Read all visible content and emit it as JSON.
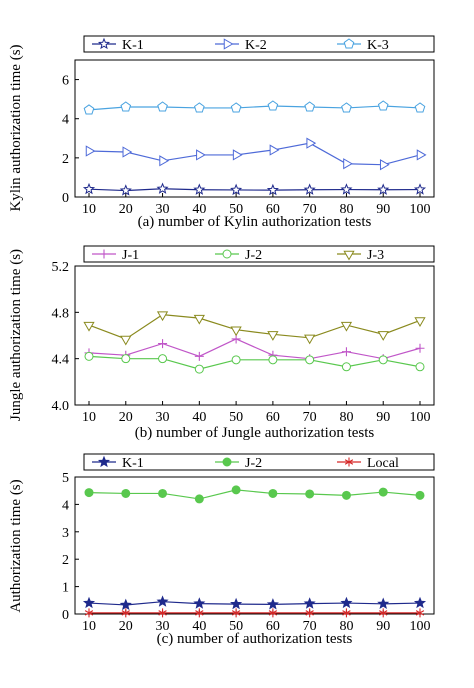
{
  "chart_data": [
    {
      "type": "line",
      "xlabel": "(a) number of Kylin authorization tests",
      "ylabel": "Kylin authorization time (s)",
      "x": [
        10,
        20,
        30,
        40,
        50,
        60,
        70,
        80,
        90,
        100
      ],
      "xticks": [
        "10",
        "20",
        "30",
        "40",
        "50",
        "60",
        "70",
        "80",
        "90",
        "100"
      ],
      "ylim": [
        0,
        7
      ],
      "yticks": [
        "0",
        "2",
        "4",
        "6"
      ],
      "ytick_values": [
        0,
        2,
        4,
        6
      ],
      "legend_position": "top",
      "grid": false,
      "series": [
        {
          "name": "K-1",
          "marker": "star",
          "color": "#1f2a8c",
          "values": [
            0.4,
            0.33,
            0.42,
            0.37,
            0.36,
            0.35,
            0.37,
            0.38,
            0.37,
            0.38
          ]
        },
        {
          "name": "K-2",
          "marker": "triangle-right",
          "color": "#4e6ad8",
          "values": [
            2.35,
            2.3,
            1.85,
            2.15,
            2.15,
            2.4,
            2.75,
            1.7,
            1.65,
            2.15
          ]
        },
        {
          "name": "K-3",
          "marker": "pentagon",
          "color": "#4aa3e0",
          "values": [
            4.45,
            4.6,
            4.6,
            4.55,
            4.55,
            4.65,
            4.6,
            4.55,
            4.65,
            4.55
          ]
        }
      ]
    },
    {
      "type": "line",
      "xlabel": "(b) number of Jungle authorization tests",
      "ylabel": "Jungle authorization time (s)",
      "x": [
        10,
        20,
        30,
        40,
        50,
        60,
        70,
        80,
        90,
        100
      ],
      "xticks": [
        "10",
        "20",
        "30",
        "40",
        "50",
        "60",
        "70",
        "80",
        "90",
        "100"
      ],
      "ylim": [
        4.0,
        5.2
      ],
      "yticks": [
        "4.0",
        "4.4",
        "4.8",
        "5.2"
      ],
      "ytick_values": [
        4.0,
        4.4,
        4.8,
        5.2
      ],
      "legend_position": "top",
      "grid": false,
      "series": [
        {
          "name": "J-1",
          "marker": "plus",
          "color": "#c056c8",
          "values": [
            4.45,
            4.43,
            4.53,
            4.42,
            4.57,
            4.43,
            4.4,
            4.46,
            4.4,
            4.49
          ]
        },
        {
          "name": "J-2",
          "marker": "circle",
          "color": "#59c84e",
          "values": [
            4.42,
            4.4,
            4.4,
            4.31,
            4.39,
            4.39,
            4.39,
            4.33,
            4.39,
            4.33
          ]
        },
        {
          "name": "J-3",
          "marker": "triangle-down",
          "color": "#8a8a1e",
          "values": [
            4.69,
            4.57,
            4.78,
            4.75,
            4.65,
            4.61,
            4.58,
            4.69,
            4.61,
            4.73
          ]
        }
      ]
    },
    {
      "type": "line",
      "xlabel": "(c) number of authorization tests",
      "ylabel": "Authorization time (s)",
      "x": [
        10,
        20,
        30,
        40,
        50,
        60,
        70,
        80,
        90,
        100
      ],
      "xticks": [
        "10",
        "20",
        "30",
        "40",
        "50",
        "60",
        "70",
        "80",
        "90",
        "100"
      ],
      "ylim": [
        0,
        5
      ],
      "yticks": [
        "0",
        "1",
        "2",
        "3",
        "4",
        "5"
      ],
      "ytick_values": [
        0,
        1,
        2,
        3,
        4,
        5
      ],
      "legend_position": "top",
      "grid": false,
      "series": [
        {
          "name": "K-1",
          "marker": "star-filled",
          "color": "#1f2a8c",
          "values": [
            0.4,
            0.33,
            0.45,
            0.38,
            0.36,
            0.35,
            0.38,
            0.4,
            0.37,
            0.4
          ]
        },
        {
          "name": "J-2",
          "marker": "circle-filled",
          "color": "#59c84e",
          "values": [
            4.43,
            4.4,
            4.4,
            4.2,
            4.53,
            4.4,
            4.38,
            4.33,
            4.45,
            4.33
          ]
        },
        {
          "name": "Local",
          "marker": "asterisk",
          "color": "#d62828",
          "values": [
            0.04,
            0.04,
            0.04,
            0.04,
            0.04,
            0.04,
            0.04,
            0.04,
            0.04,
            0.04
          ]
        }
      ]
    }
  ]
}
